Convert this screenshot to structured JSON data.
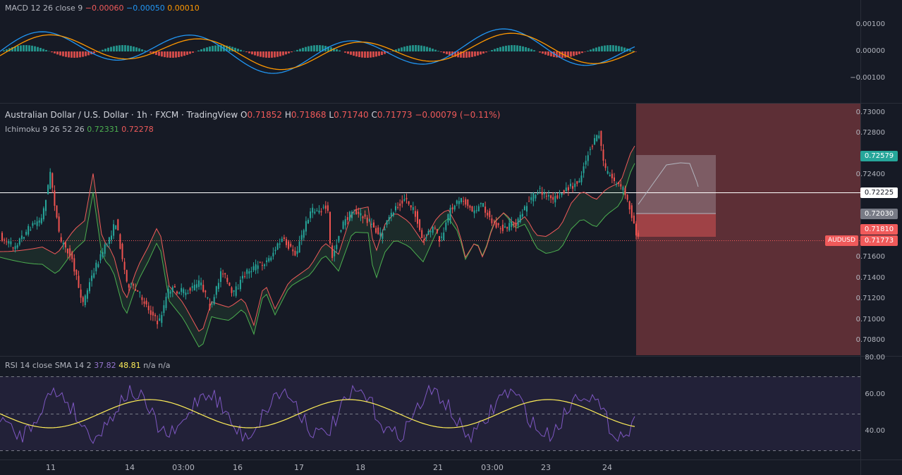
{
  "macd": {
    "title": "MACD 12 26 close 9",
    "v1": "−0.00060",
    "v2": "−0.00050",
    "v3": "0.00010",
    "axis": [
      "0.00100",
      "0.00000",
      "−0.00100"
    ]
  },
  "main": {
    "title": "Australian Dollar / U.S. Dollar · 1h · FXCM · TradingView",
    "o_label": "O",
    "o": "0.71852",
    "h_label": "H",
    "h": "0.71868",
    "l_label": "L",
    "l": "0.71740",
    "c_label": "C",
    "c": "0.71773",
    "change": "−0.00079 (−0.11%)",
    "ichimoku_title": "Ichimoku 9 26 52 26",
    "ichi_v1": "0.72331",
    "ichi_v2": "0.72278",
    "axis": [
      "0.73000",
      "0.72800",
      "0.72400",
      "0.71600",
      "0.71400",
      "0.71200",
      "0.71000",
      "0.70800"
    ],
    "tags": {
      "green": "0.72579",
      "white": "0.72225",
      "gray": "0.72030",
      "red": "0.71810",
      "price": "0.71773",
      "symbol": "AUDUSD"
    }
  },
  "rsi": {
    "title": "RSI 14 close SMA 14 2",
    "v1": "37.82",
    "v2": "48.81",
    "v3": "n/a",
    "v4": "n/a",
    "axis": [
      "80.00",
      "60.00",
      "40.00"
    ]
  },
  "time_axis": [
    "11",
    "14",
    "03:00",
    "16",
    "17",
    "18",
    "21",
    "03:00",
    "23",
    "24"
  ],
  "colors": {
    "up": "#26a69a",
    "down": "#ef5350",
    "background": "#161a25",
    "macd_line": "#2196f3",
    "signal_line": "#ff9800",
    "rsi_line": "#7e57c2",
    "rsi_sma": "#ffee58"
  }
}
